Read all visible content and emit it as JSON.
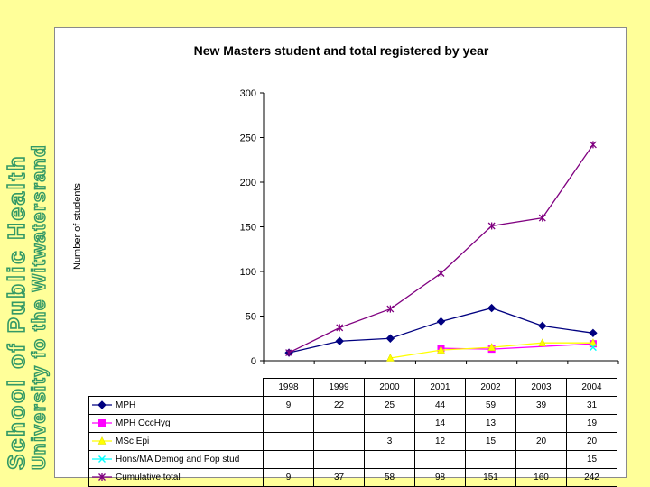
{
  "banner": {
    "line1": "School of Public Health",
    "line2": "University fo the Witwatersrand",
    "color": "#339966"
  },
  "chart_data": {
    "type": "line",
    "title": "New Masters student and total registered by year",
    "ylabel": "Number of students",
    "xlabel": "",
    "categories": [
      "1998",
      "1999",
      "2000",
      "2001",
      "2002",
      "2003",
      "2004"
    ],
    "ylim": [
      0,
      300
    ],
    "yticks": [
      "0",
      "50",
      "100",
      "150",
      "200",
      "250",
      "300"
    ],
    "grid": false,
    "legend_placement": "data table below chart",
    "series": [
      {
        "name": "MPH",
        "color": "#000080",
        "marker": "diamond",
        "values": [
          9,
          22,
          25,
          44,
          59,
          39,
          31
        ],
        "labels": [
          "9",
          "22",
          "25",
          "44",
          "59",
          "39",
          "31"
        ]
      },
      {
        "name": "MPH OccHyg",
        "color": "#ff00ff",
        "marker": "square",
        "values": [
          null,
          null,
          null,
          14,
          13,
          null,
          19
        ],
        "labels": [
          "",
          "",
          "",
          "14",
          "13",
          "",
          "19"
        ]
      },
      {
        "name": "MSc Epi",
        "color": "#ffff00",
        "marker": "triangle",
        "values": [
          null,
          null,
          3,
          12,
          15,
          20,
          20
        ],
        "labels": [
          "",
          "",
          "3",
          "12",
          "15",
          "20",
          "20"
        ]
      },
      {
        "name": "Hons/MA Demog and Pop stud",
        "color": "#00ffff",
        "marker": "x",
        "values": [
          null,
          null,
          null,
          null,
          null,
          null,
          15
        ],
        "labels": [
          "",
          "",
          "",
          "",
          "",
          "",
          "15"
        ]
      },
      {
        "name": "Cumulative total",
        "color": "#800080",
        "marker": "star",
        "values": [
          9,
          37,
          58,
          98,
          151,
          160,
          242
        ],
        "labels": [
          "9",
          "37",
          "58",
          "98",
          "151",
          "160",
          "242"
        ]
      }
    ]
  }
}
